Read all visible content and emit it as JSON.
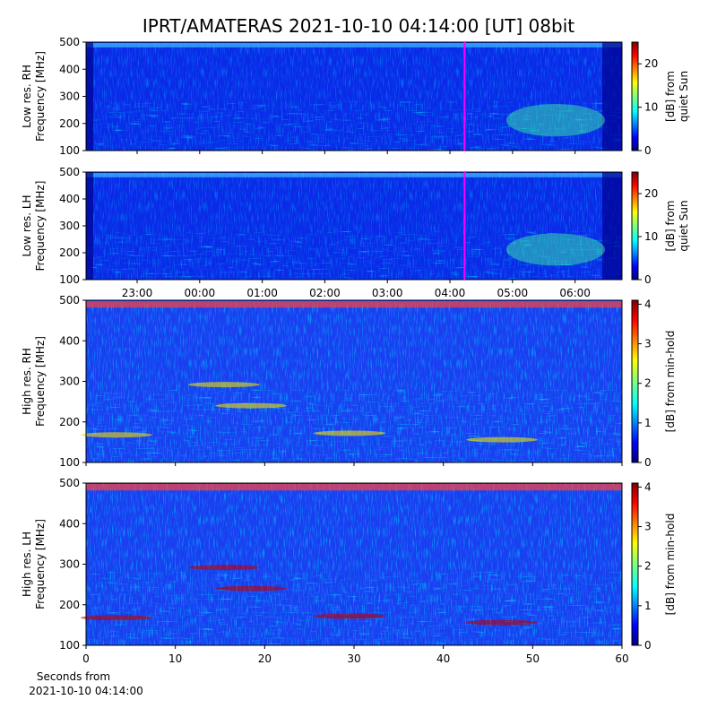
{
  "title": "IPRT/AMATERAS 2021-10-10 04:14:00 [UT]   08bit",
  "chart_data": [
    {
      "type": "heatmap",
      "ylabel": [
        "Low res. RH",
        "Frequency [MHz]"
      ],
      "ylim": [
        100,
        500
      ],
      "yticks": [
        100,
        200,
        300,
        400,
        500
      ],
      "xlim": [
        "22:11",
        "06:45"
      ],
      "xticks": [
        "23:00",
        "00:00",
        "01:00",
        "02:00",
        "03:00",
        "04:00",
        "05:00",
        "06:00"
      ],
      "xticklabels": false,
      "marker": {
        "x": "04:14",
        "color": "#ff00ff"
      },
      "colorbar": {
        "label": [
          "[dB] from",
          "quiet Sun"
        ],
        "clim": [
          0,
          25
        ],
        "ticks": [
          0,
          10,
          20
        ]
      }
    },
    {
      "type": "heatmap",
      "ylabel": [
        "Low res. LH",
        "Frequency [MHz]"
      ],
      "ylim": [
        100,
        500
      ],
      "yticks": [
        100,
        200,
        300,
        400,
        500
      ],
      "xlim": [
        "22:11",
        "06:45"
      ],
      "xticks": [
        "23:00",
        "00:00",
        "01:00",
        "02:00",
        "03:00",
        "04:00",
        "05:00",
        "06:00"
      ],
      "xticklabels": true,
      "marker": {
        "x": "04:14",
        "color": "#ff00ff"
      },
      "colorbar": {
        "label": [
          "[dB] from",
          "quiet Sun"
        ],
        "clim": [
          0,
          25
        ],
        "ticks": [
          0,
          10,
          20
        ]
      }
    },
    {
      "type": "heatmap",
      "ylabel": [
        "High res. RH",
        "Frequency [MHz]"
      ],
      "ylim": [
        100,
        500
      ],
      "yticks": [
        100,
        200,
        300,
        400,
        500
      ],
      "xlim": [
        0,
        60
      ],
      "xticks": [
        0,
        10,
        20,
        30,
        40,
        50,
        60
      ],
      "xticklabels": false,
      "colorbar": {
        "label": [
          "[dB] from min-hold"
        ],
        "clim": [
          0,
          4.1
        ],
        "ticks": [
          0,
          1,
          2,
          3,
          4
        ]
      }
    },
    {
      "type": "heatmap",
      "ylabel": [
        "High res. LH",
        "Frequency [MHz]"
      ],
      "ylim": [
        100,
        500
      ],
      "yticks": [
        100,
        200,
        300,
        400,
        500
      ],
      "xlim": [
        0,
        60
      ],
      "xticks": [
        0,
        10,
        20,
        30,
        40,
        50,
        60
      ],
      "xticklabels": true,
      "xlabel": [
        "Seconds from",
        "2021-10-10 04:14:00"
      ],
      "colorbar": {
        "label": [
          "[dB] from min-hold"
        ],
        "clim": [
          0,
          4.1
        ],
        "ticks": [
          0,
          1,
          2,
          3,
          4
        ]
      }
    }
  ]
}
